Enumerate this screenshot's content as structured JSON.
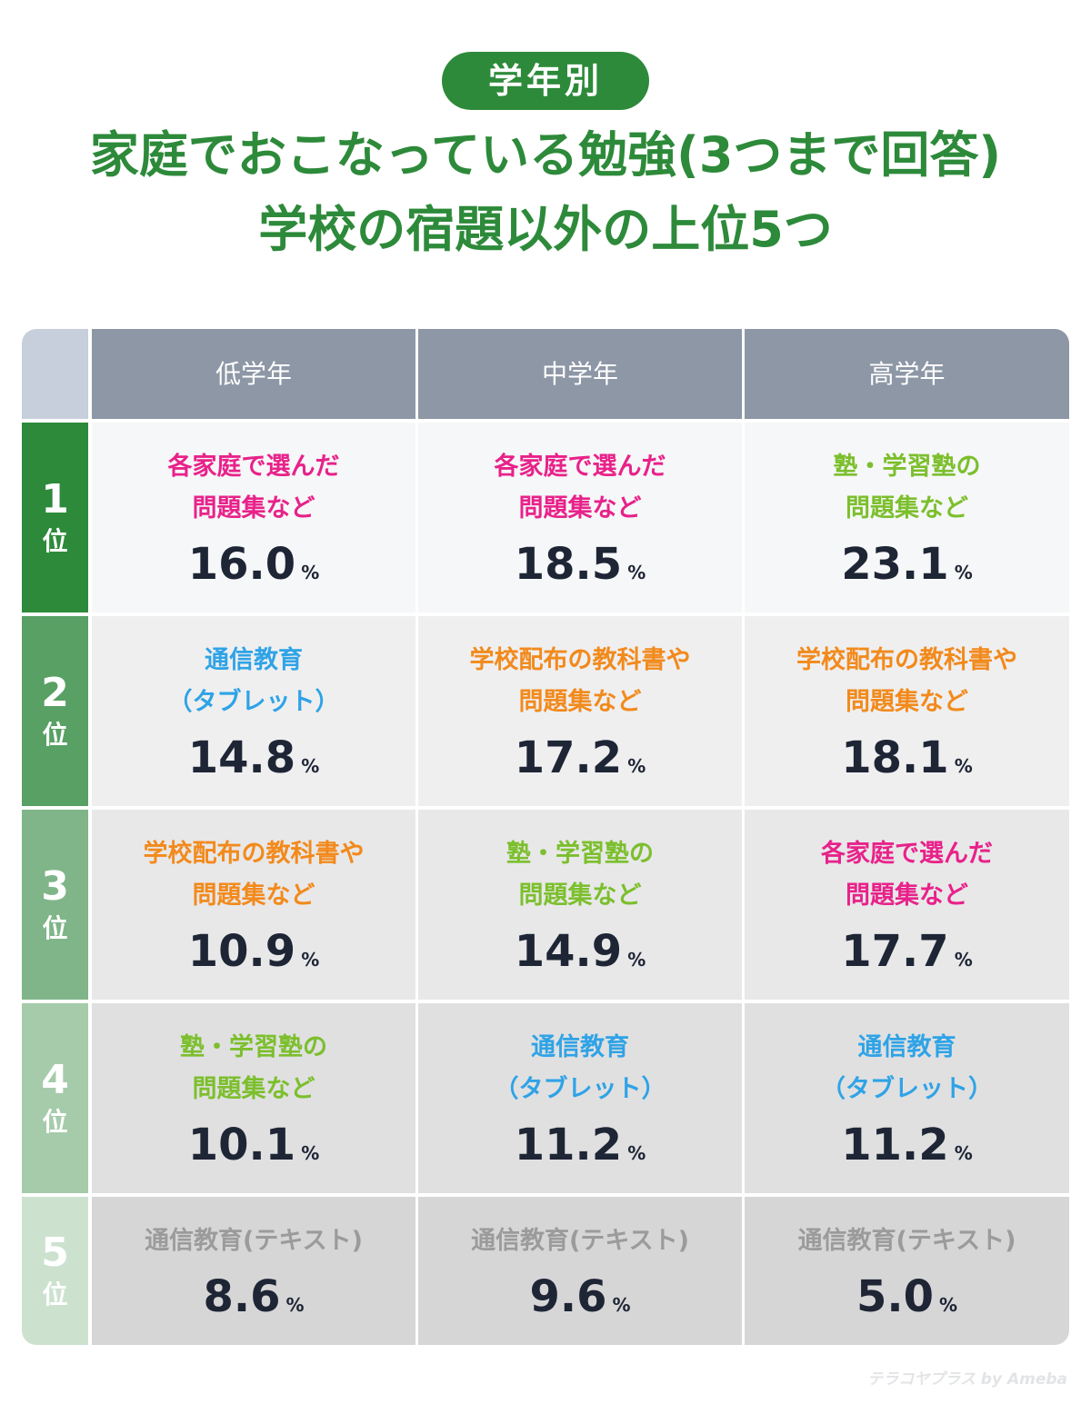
{
  "header": {
    "pill": "学年別",
    "title_line1": "家庭でおこなっている勉強(3つまで回答)",
    "title_line2": "学校の宿題以外の上位5つ"
  },
  "colors": {
    "green": "#2d8a3a",
    "pink": "#e8228a",
    "lime": "#7cbf2d",
    "blue": "#2fa3e6",
    "orange": "#f28a1c",
    "gray": "#9b9b9b"
  },
  "chart_data": {
    "type": "table",
    "columns": [
      "低学年",
      "中学年",
      "高学年"
    ],
    "unit": "%",
    "rows": [
      {
        "rank": "1",
        "suffix": "位",
        "cells": [
          {
            "label": [
              "各家庭で選んだ",
              "問題集など"
            ],
            "value": "16.0",
            "color": "pink"
          },
          {
            "label": [
              "各家庭で選んだ",
              "問題集など"
            ],
            "value": "18.5",
            "color": "pink"
          },
          {
            "label": [
              "塾・学習塾の",
              "問題集など"
            ],
            "value": "23.1",
            "color": "lime"
          }
        ]
      },
      {
        "rank": "2",
        "suffix": "位",
        "cells": [
          {
            "label": [
              "通信教育",
              "（タブレット）"
            ],
            "value": "14.8",
            "color": "blue"
          },
          {
            "label": [
              "学校配布の教科書や",
              "問題集など"
            ],
            "value": "17.2",
            "color": "orange"
          },
          {
            "label": [
              "学校配布の教科書や",
              "問題集など"
            ],
            "value": "18.1",
            "color": "orange"
          }
        ]
      },
      {
        "rank": "3",
        "suffix": "位",
        "cells": [
          {
            "label": [
              "学校配布の教科書や",
              "問題集など"
            ],
            "value": "10.9",
            "color": "orange"
          },
          {
            "label": [
              "塾・学習塾の",
              "問題集など"
            ],
            "value": "14.9",
            "color": "lime"
          },
          {
            "label": [
              "各家庭で選んだ",
              "問題集など"
            ],
            "value": "17.7",
            "color": "pink"
          }
        ]
      },
      {
        "rank": "4",
        "suffix": "位",
        "cells": [
          {
            "label": [
              "塾・学習塾の",
              "問題集など"
            ],
            "value": "10.1",
            "color": "lime"
          },
          {
            "label": [
              "通信教育",
              "（タブレット）"
            ],
            "value": "11.2",
            "color": "blue"
          },
          {
            "label": [
              "通信教育",
              "（タブレット）"
            ],
            "value": "11.2",
            "color": "blue"
          }
        ]
      },
      {
        "rank": "5",
        "suffix": "位",
        "cells": [
          {
            "label": [
              "通信教育(テキスト)"
            ],
            "value": "8.6",
            "color": "gray"
          },
          {
            "label": [
              "通信教育(テキスト)"
            ],
            "value": "9.6",
            "color": "gray"
          },
          {
            "label": [
              "通信教育(テキスト)"
            ],
            "value": "5.0",
            "color": "gray"
          }
        ]
      }
    ]
  },
  "footer": {
    "logo_text": "テラコヤプラス by Ameba"
  }
}
